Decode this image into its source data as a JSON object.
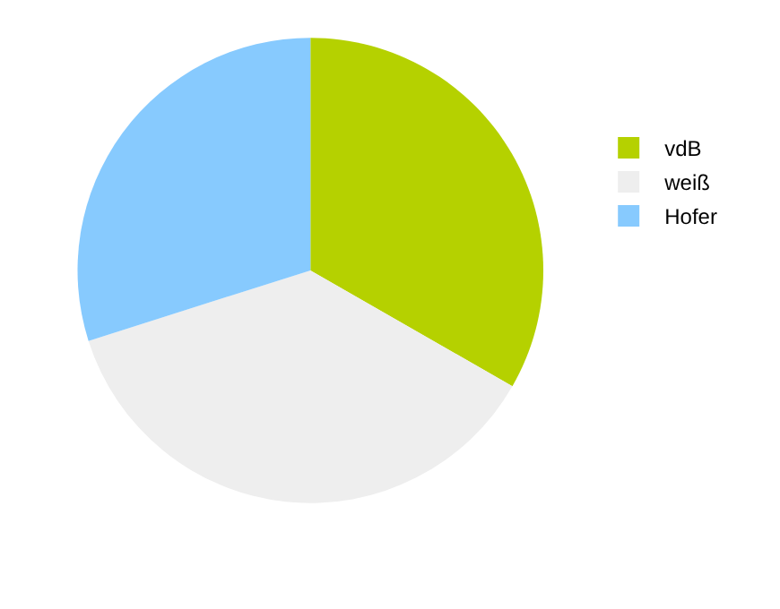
{
  "chart_data": {
    "type": "pie",
    "categories": [
      "vdB",
      "weiß",
      "Hofer"
    ],
    "values": [
      33.3,
      36.8,
      29.9
    ],
    "colors": [
      "#b5d100",
      "#eeeeee",
      "#87cafe"
    ],
    "legend": "top right"
  }
}
